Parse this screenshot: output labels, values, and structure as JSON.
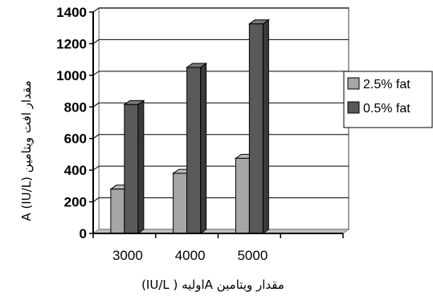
{
  "chart_data": {
    "type": "bar",
    "title": "",
    "categories": [
      "3000",
      "4000",
      "5000"
    ],
    "series": [
      {
        "name": "2.5% fat",
        "values": [
          280,
          380,
          475
        ],
        "color": "#a6a6a6"
      },
      {
        "name": "0.5% fat",
        "values": [
          815,
          1050,
          1325
        ],
        "color": "#595959"
      }
    ],
    "xlabel": "مقدار ویتامین Aاولیه ( IU/L)",
    "ylabel": "مقدار افت ویتامین A (IU/L)",
    "ylim": [
      0,
      1400
    ],
    "yticks": [
      0,
      200,
      400,
      600,
      800,
      1000,
      1200,
      1400
    ],
    "grid": true,
    "legend": "right",
    "style": "3d-bar"
  }
}
